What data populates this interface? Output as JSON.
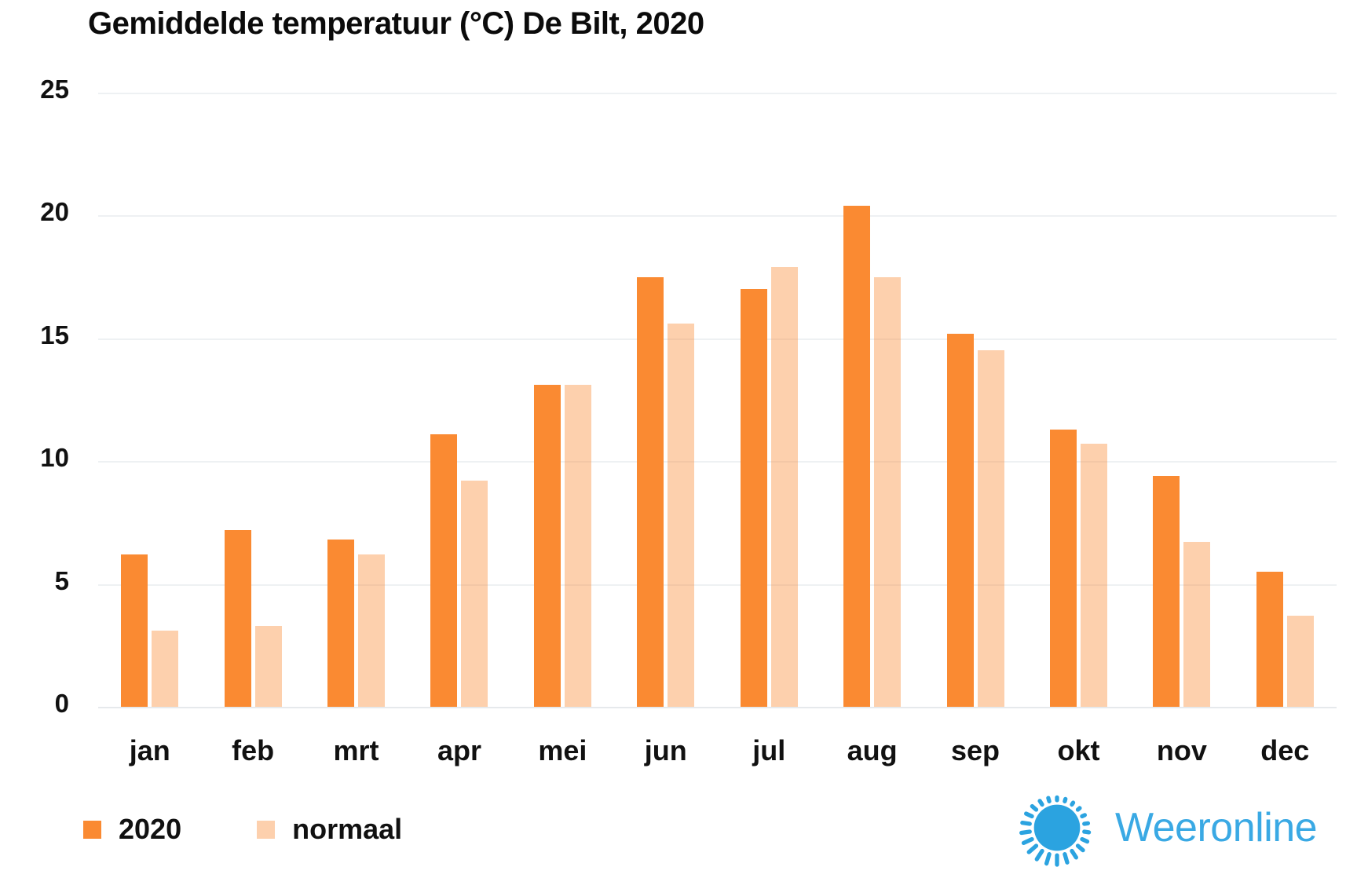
{
  "title": "Gemiddelde temperatuur (°C) De Bilt, 2020",
  "chart_data": {
    "type": "bar",
    "title": "Gemiddelde temperatuur (°C) De Bilt, 2020",
    "categories": [
      "jan",
      "feb",
      "mrt",
      "apr",
      "mei",
      "jun",
      "jul",
      "aug",
      "sep",
      "okt",
      "nov",
      "dec"
    ],
    "series": [
      {
        "name": "2020",
        "color": "#fa8a32",
        "values": [
          6.2,
          7.2,
          6.8,
          11.1,
          13.1,
          17.5,
          17.0,
          20.4,
          15.2,
          11.3,
          9.4,
          5.5
        ]
      },
      {
        "name": "normaal",
        "color": "rgba(250,138,50,0.40)",
        "values": [
          3.1,
          3.3,
          6.2,
          9.2,
          13.1,
          15.6,
          17.9,
          17.5,
          14.5,
          10.7,
          6.7,
          3.7
        ]
      }
    ],
    "xlabel": "",
    "ylabel": "",
    "ylim": [
      0,
      25
    ],
    "yticks": [
      0,
      5,
      10,
      15,
      20,
      25
    ],
    "grid": true,
    "legend_position": "bottom-left"
  },
  "legend": {
    "items": [
      {
        "label": "2020",
        "color": "#fa8a32"
      },
      {
        "label": "normaal",
        "color": "rgba(250,138,50,0.40)"
      }
    ]
  },
  "logo": {
    "text": "Weeronline",
    "sun_color": "#2ba3e0",
    "text_color": "#3aa9e4"
  }
}
